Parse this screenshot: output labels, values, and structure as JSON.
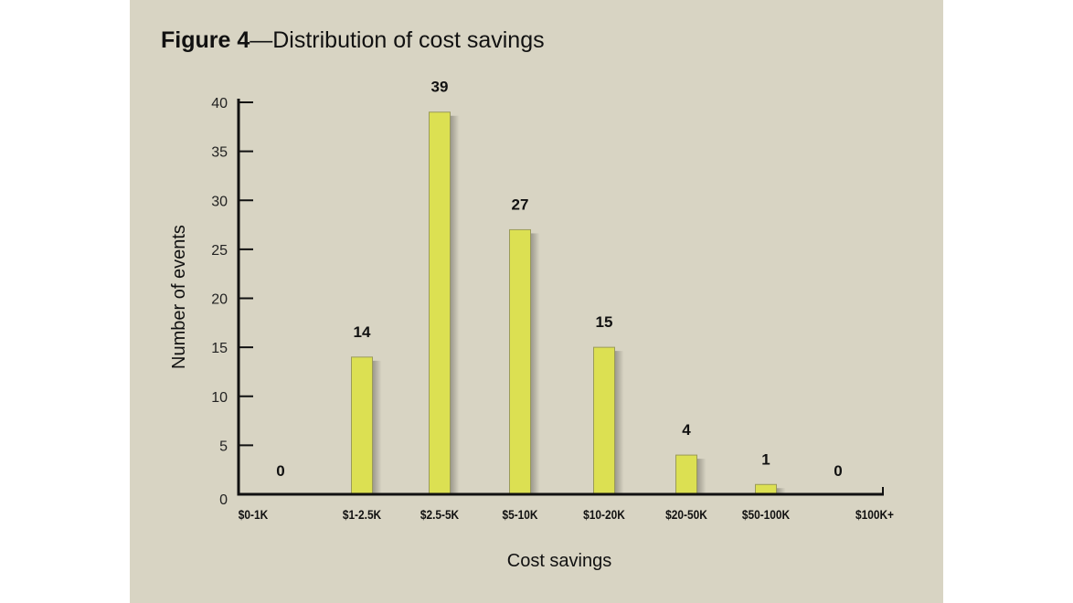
{
  "chart_data": {
    "type": "bar",
    "title_bold": "Figure 4",
    "title_rest": "—Distribution of cost savings",
    "categories": [
      "$0-1K",
      "$1-2.5K",
      "$2.5-5K",
      "$5-10K",
      "$10-20K",
      "$20-50K",
      "$50-100K",
      "$100K+"
    ],
    "values": [
      0,
      14,
      39,
      27,
      15,
      4,
      1,
      0
    ],
    "xlabel": "Cost savings",
    "ylabel": "Number of events",
    "ylim": [
      0,
      40
    ],
    "yticks": [
      0,
      5,
      10,
      15,
      20,
      25,
      30,
      35,
      40
    ],
    "grid": false,
    "bar_color": "#dce052",
    "background": "#d8d4c3"
  }
}
